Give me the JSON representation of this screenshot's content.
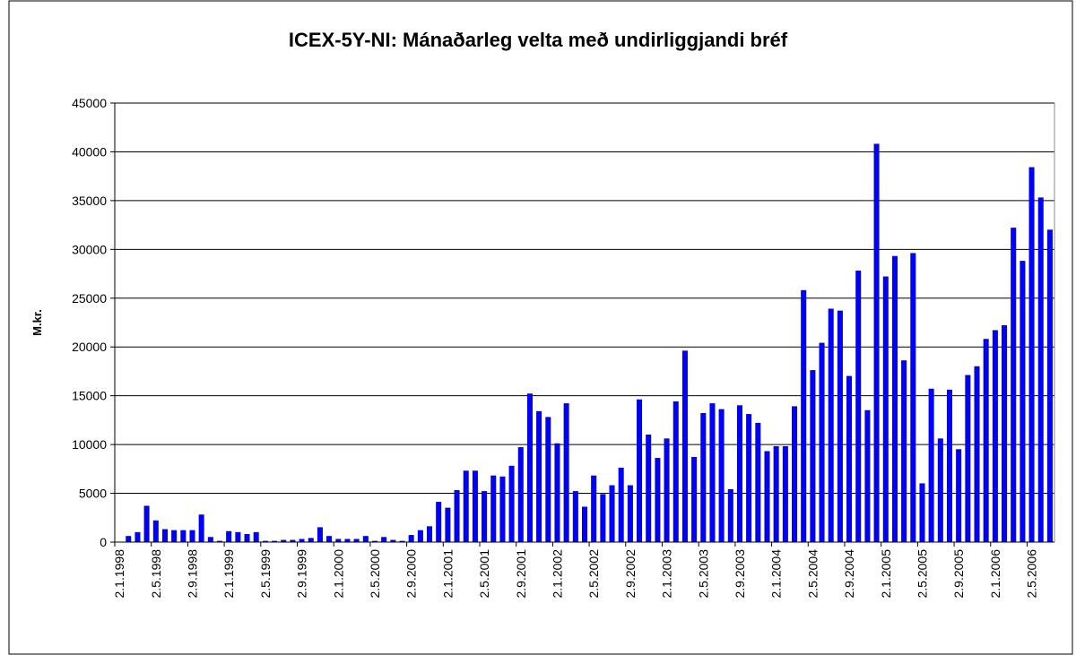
{
  "chart_data": {
    "type": "bar",
    "title": "ICEX-5Y-NI: Mánaðarleg velta með undirliggjandi bréf",
    "y_label": "M.kr.",
    "categories": [
      "2.1.1998",
      null,
      null,
      null,
      "2.5.1998",
      null,
      null,
      null,
      "2.9.1998",
      null,
      null,
      null,
      "2.1.1999",
      null,
      null,
      null,
      "2.5.1999",
      null,
      null,
      null,
      "2.9.1999",
      null,
      null,
      null,
      "2.1.2000",
      null,
      null,
      null,
      "2.5.2000",
      null,
      null,
      null,
      "2.9.2000",
      null,
      null,
      null,
      "2.1.2001",
      null,
      null,
      null,
      "2.5.2001",
      null,
      null,
      null,
      "2.9.2001",
      null,
      null,
      null,
      "2.1.2002",
      null,
      null,
      null,
      "2.5.2002",
      null,
      null,
      null,
      "2.9.2002",
      null,
      null,
      null,
      "2.1.2003",
      null,
      null,
      null,
      "2.5.2003",
      null,
      null,
      null,
      "2.9.2003",
      null,
      null,
      null,
      "2.1.2004",
      null,
      null,
      null,
      "2.5.2004",
      null,
      null,
      null,
      "2.9.2004",
      null,
      null,
      null,
      "2.1.2005",
      null,
      null,
      null,
      "2.5.2005",
      null,
      null,
      null,
      "2.9.2005",
      null,
      null,
      null,
      "2.1.2006",
      null,
      null,
      null,
      "2.5.2006",
      null,
      null
    ],
    "values": [
      0,
      600,
      1000,
      3700,
      2200,
      1300,
      1200,
      1200,
      1200,
      2800,
      500,
      100,
      1100,
      1000,
      800,
      1000,
      100,
      100,
      200,
      200,
      300,
      400,
      1500,
      600,
      300,
      300,
      300,
      600,
      100,
      500,
      200,
      100,
      700,
      1200,
      1600,
      4100,
      3500,
      5300,
      7300,
      7300,
      5200,
      6800,
      6700,
      7800,
      9700,
      15200,
      13400,
      12800,
      10100,
      14200,
      5200,
      3600,
      6800,
      4900,
      5800,
      7600,
      5800,
      14600,
      11000,
      8600,
      10600,
      14400,
      19600,
      8700,
      13200,
      14200,
      13600,
      5400,
      14000,
      13100,
      12200,
      9300,
      9800,
      9800,
      13900,
      25800,
      17600,
      20400,
      23900,
      23700,
      17000,
      27800,
      13500,
      40800,
      27200,
      29300,
      18600,
      29600,
      6000,
      15700,
      10600,
      15600,
      9500,
      17100,
      18000,
      20800,
      21700,
      22200,
      32200,
      28800,
      38400,
      35300,
      32000
    ],
    "color": "#0000ff",
    "ylim": [
      0,
      45000
    ],
    "yticks": [
      0,
      5000,
      10000,
      15000,
      20000,
      25000,
      30000,
      35000,
      40000,
      45000
    ],
    "grid": true
  }
}
